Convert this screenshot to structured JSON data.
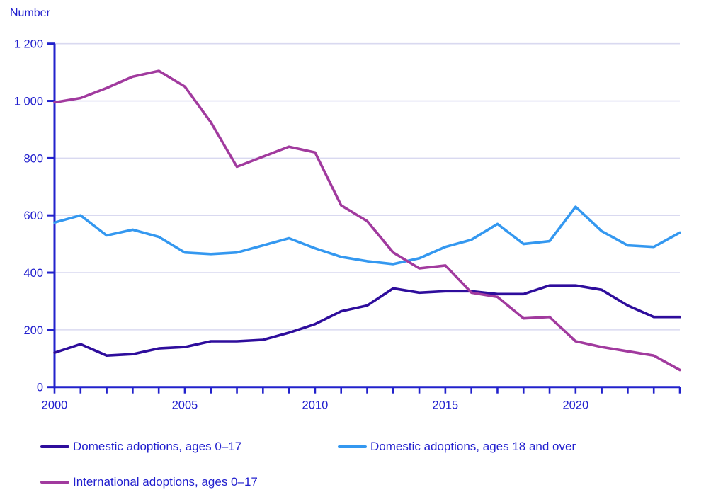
{
  "header": {
    "unit_label": "Number"
  },
  "chart_data": {
    "type": "line",
    "title": "",
    "xlabel": "",
    "ylabel": "Number",
    "x": [
      2000,
      2001,
      2002,
      2003,
      2004,
      2005,
      2006,
      2007,
      2008,
      2009,
      2010,
      2011,
      2012,
      2013,
      2014,
      2015,
      2016,
      2017,
      2018,
      2019,
      2020,
      2021,
      2022,
      2023,
      2024
    ],
    "series": [
      {
        "name": "Domestic adoptions, ages 0–17",
        "color": "#2e0d9c",
        "values": [
          120,
          150,
          110,
          115,
          135,
          140,
          160,
          160,
          165,
          190,
          220,
          265,
          285,
          345,
          330,
          335,
          335,
          325,
          325,
          355,
          355,
          340,
          285,
          245,
          245
        ]
      },
      {
        "name": "Domestic adoptions, ages 18 and over",
        "color": "#3498f0",
        "values": [
          575,
          600,
          530,
          550,
          525,
          470,
          465,
          470,
          495,
          520,
          485,
          455,
          440,
          430,
          450,
          490,
          515,
          570,
          500,
          510,
          630,
          545,
          495,
          490,
          540
        ]
      },
      {
        "name": "International adoptions, ages 0–17",
        "color": "#a13a9e",
        "values": [
          995,
          1010,
          1045,
          1085,
          1105,
          1050,
          925,
          770,
          805,
          840,
          820,
          635,
          580,
          470,
          415,
          425,
          330,
          315,
          240,
          245,
          160,
          140,
          125,
          110,
          60
        ]
      }
    ],
    "ylim": [
      0,
      1200
    ],
    "ytick_step": 200,
    "ytick_labels": [
      "0",
      "200",
      "400",
      "600",
      "800",
      "1 000",
      "1 200"
    ],
    "xtick_labels": [
      "2000",
      "2005",
      "2010",
      "2015",
      "2020"
    ],
    "xtick_label_step": 5,
    "grid": "horizontal",
    "legend_position": "bottom",
    "axis_color": "#2222cc",
    "grid_color": "#d9d9f0",
    "label_color": "#211fce"
  }
}
